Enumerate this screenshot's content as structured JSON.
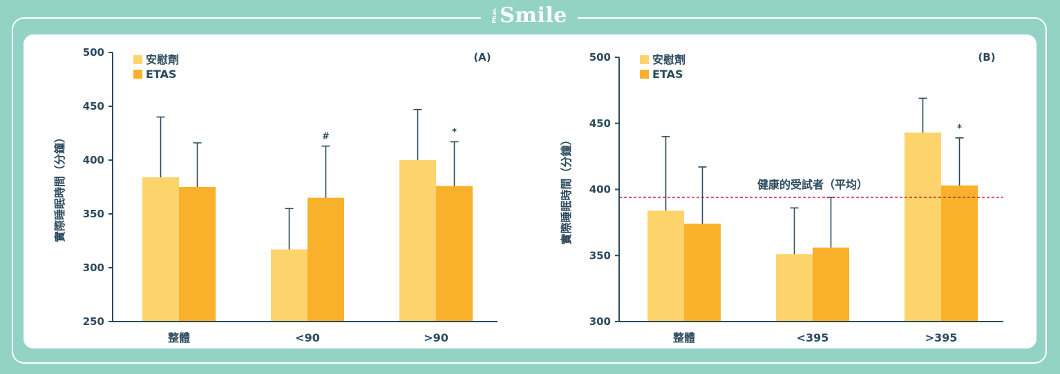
{
  "brand": {
    "prefix": "Phar.",
    "name": "Smile"
  },
  "colors": {
    "placebo": "#fdd36b",
    "etas": "#f9b12c",
    "axis": "#2b4a5c",
    "ref_line": "#c8202f"
  },
  "chart_data": [
    {
      "type": "bar",
      "panel_label": "(A)",
      "ylabel": "實際睡眠時間（分鐘）",
      "ylim": [
        250,
        500
      ],
      "yticks": [
        250,
        300,
        350,
        400,
        450,
        500
      ],
      "categories": [
        "整體",
        "<90",
        ">90"
      ],
      "series": [
        {
          "name": "安慰劑",
          "values": [
            384,
            317,
            400
          ],
          "error_upper": [
            440,
            355,
            447
          ]
        },
        {
          "name": "ETAS",
          "values": [
            375,
            365,
            376
          ],
          "error_upper": [
            416,
            413,
            417
          ]
        }
      ],
      "annotations": [
        {
          "category": 1,
          "series": 1,
          "text": "#"
        },
        {
          "category": 2,
          "series": 1,
          "text": "*"
        }
      ],
      "legend": "top-left"
    },
    {
      "type": "bar",
      "panel_label": "(B)",
      "ylabel": "實際睡眠時間（分鐘）",
      "ylim": [
        300,
        500
      ],
      "yticks": [
        300,
        350,
        400,
        450,
        500
      ],
      "categories": [
        "整體",
        "<395",
        ">395"
      ],
      "series": [
        {
          "name": "安慰劑",
          "values": [
            384,
            351,
            443
          ],
          "error_upper": [
            440,
            386,
            469
          ]
        },
        {
          "name": "ETAS",
          "values": [
            374,
            356,
            403
          ],
          "error_upper": [
            417,
            394,
            439
          ]
        }
      ],
      "reference_line": {
        "value": 394,
        "label": "健康的受試者（平均）"
      },
      "annotations": [
        {
          "category": 2,
          "series": 1,
          "text": "*"
        }
      ],
      "legend": "top-left"
    }
  ]
}
